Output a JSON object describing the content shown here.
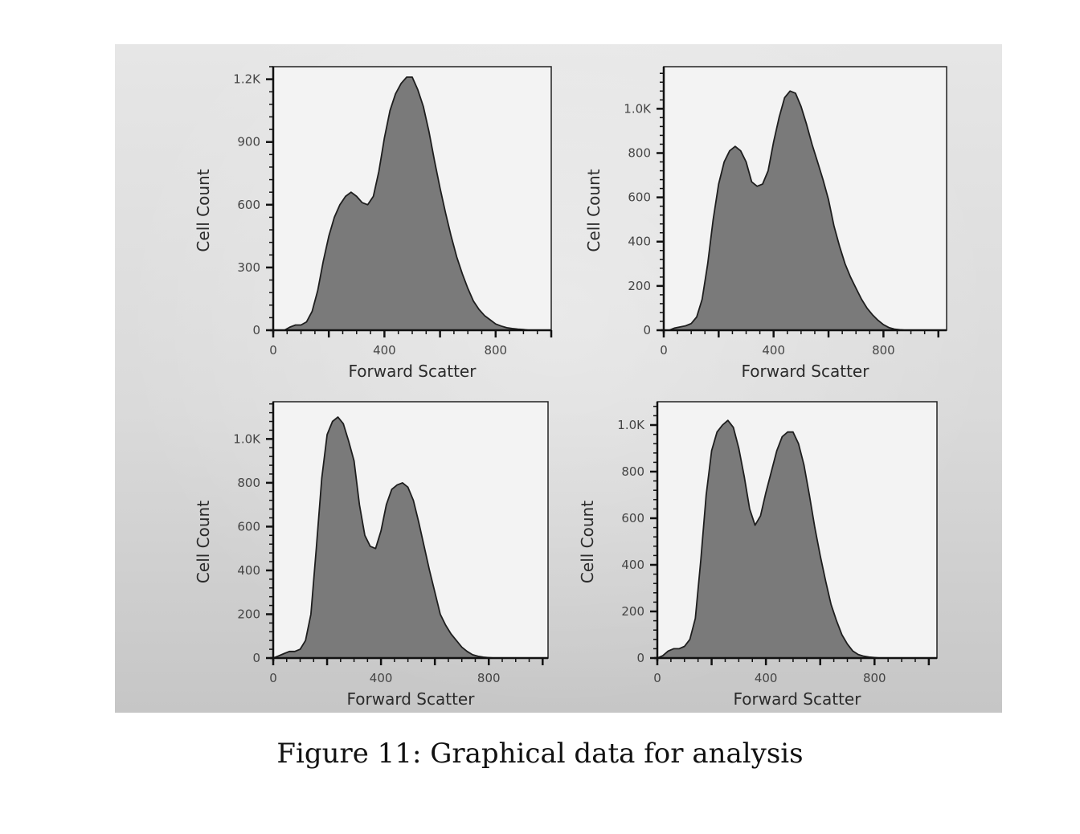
{
  "caption": "Figure 11: Graphical data for analysis",
  "chart_data": [
    {
      "type": "area",
      "xlabel": "Forward Scatter",
      "ylabel": "Cell Count",
      "xlim": [
        0,
        1000
      ],
      "ylim": [
        0,
        1260
      ],
      "xticks": [
        {
          "value": 0,
          "label": "0"
        },
        {
          "value": 400,
          "label": "400"
        },
        {
          "value": 800,
          "label": "800"
        }
      ],
      "yticks": [
        {
          "value": 0,
          "label": "0"
        },
        {
          "value": 300,
          "label": "300"
        },
        {
          "value": 600,
          "label": "600"
        },
        {
          "value": 900,
          "label": "900"
        },
        {
          "value": 1200,
          "label": "1.2K"
        }
      ],
      "x": [
        0,
        20,
        40,
        60,
        80,
        100,
        120,
        140,
        160,
        180,
        200,
        220,
        240,
        260,
        280,
        300,
        320,
        340,
        360,
        380,
        400,
        420,
        440,
        460,
        480,
        500,
        520,
        540,
        560,
        580,
        600,
        620,
        640,
        660,
        680,
        700,
        720,
        740,
        760,
        780,
        800,
        820,
        840,
        860,
        880,
        900,
        920,
        940,
        960,
        980,
        1000
      ],
      "values": [
        0,
        0,
        0,
        15,
        25,
        25,
        40,
        90,
        190,
        330,
        450,
        540,
        600,
        640,
        660,
        640,
        610,
        600,
        640,
        760,
        920,
        1050,
        1130,
        1180,
        1210,
        1210,
        1150,
        1070,
        950,
        810,
        680,
        560,
        450,
        350,
        270,
        200,
        140,
        100,
        70,
        50,
        30,
        20,
        12,
        8,
        5,
        3,
        0,
        0,
        0,
        0,
        0
      ],
      "color": "#7a7a7a"
    },
    {
      "type": "area",
      "xlabel": "Forward Scatter",
      "ylabel": "Cell Count",
      "xlim": [
        0,
        1030
      ],
      "ylim": [
        0,
        1190
      ],
      "xticks": [
        {
          "value": 0,
          "label": "0"
        },
        {
          "value": 400,
          "label": "400"
        },
        {
          "value": 800,
          "label": "800"
        }
      ],
      "yticks": [
        {
          "value": 0,
          "label": "0"
        },
        {
          "value": 200,
          "label": "200"
        },
        {
          "value": 400,
          "label": "400"
        },
        {
          "value": 600,
          "label": "600"
        },
        {
          "value": 800,
          "label": "800"
        },
        {
          "value": 1000,
          "label": "1.0K"
        }
      ],
      "x": [
        0,
        20,
        40,
        60,
        80,
        100,
        120,
        140,
        160,
        180,
        200,
        220,
        240,
        260,
        280,
        300,
        320,
        340,
        360,
        380,
        400,
        420,
        440,
        460,
        480,
        500,
        520,
        540,
        560,
        580,
        600,
        620,
        640,
        660,
        680,
        700,
        720,
        740,
        760,
        780,
        800,
        820,
        840,
        860,
        880,
        900,
        920,
        940,
        960,
        980,
        1000
      ],
      "values": [
        0,
        0,
        10,
        15,
        20,
        30,
        60,
        140,
        300,
        500,
        660,
        760,
        810,
        830,
        810,
        760,
        670,
        650,
        660,
        720,
        850,
        960,
        1050,
        1080,
        1070,
        1010,
        930,
        840,
        760,
        680,
        590,
        470,
        380,
        300,
        240,
        190,
        140,
        100,
        70,
        45,
        25,
        12,
        5,
        2,
        0,
        0,
        0,
        0,
        0,
        0,
        0
      ],
      "color": "#7a7a7a"
    },
    {
      "type": "area",
      "xlabel": "Forward Scatter",
      "ylabel": "Cell Count",
      "xlim": [
        0,
        1020
      ],
      "ylim": [
        0,
        1170
      ],
      "xticks": [
        {
          "value": 0,
          "label": "0"
        },
        {
          "value": 400,
          "label": "400"
        },
        {
          "value": 800,
          "label": "800"
        }
      ],
      "yticks": [
        {
          "value": 0,
          "label": "0"
        },
        {
          "value": 200,
          "label": "200"
        },
        {
          "value": 400,
          "label": "400"
        },
        {
          "value": 600,
          "label": "600"
        },
        {
          "value": 800,
          "label": "800"
        },
        {
          "value": 1000,
          "label": "1.0K"
        }
      ],
      "x": [
        0,
        20,
        40,
        60,
        80,
        100,
        120,
        140,
        160,
        180,
        200,
        220,
        240,
        260,
        280,
        300,
        320,
        340,
        360,
        380,
        400,
        420,
        440,
        460,
        480,
        500,
        520,
        540,
        560,
        580,
        600,
        620,
        640,
        660,
        680,
        700,
        720,
        740,
        760,
        780,
        800,
        820,
        840,
        860,
        880,
        900,
        920,
        940,
        960,
        980,
        1000
      ],
      "values": [
        0,
        10,
        20,
        30,
        30,
        40,
        80,
        200,
        500,
        820,
        1020,
        1080,
        1100,
        1070,
        990,
        900,
        700,
        560,
        510,
        500,
        580,
        700,
        770,
        790,
        800,
        780,
        720,
        620,
        510,
        400,
        300,
        200,
        150,
        110,
        80,
        50,
        30,
        15,
        8,
        4,
        2,
        0,
        0,
        0,
        0,
        0,
        0,
        0,
        0,
        0,
        0
      ],
      "color": "#7a7a7a"
    },
    {
      "type": "area",
      "xlabel": "Forward Scatter",
      "ylabel": "Cell Count",
      "xlim": [
        0,
        1030
      ],
      "ylim": [
        0,
        1100
      ],
      "xticks": [
        {
          "value": 0,
          "label": "0"
        },
        {
          "value": 400,
          "label": "400"
        },
        {
          "value": 800,
          "label": "800"
        }
      ],
      "yticks": [
        {
          "value": 0,
          "label": "0"
        },
        {
          "value": 200,
          "label": "200"
        },
        {
          "value": 400,
          "label": "400"
        },
        {
          "value": 600,
          "label": "600"
        },
        {
          "value": 800,
          "label": "800"
        },
        {
          "value": 1000,
          "label": "1.0K"
        }
      ],
      "x": [
        0,
        20,
        40,
        60,
        80,
        100,
        120,
        140,
        160,
        180,
        200,
        220,
        240,
        260,
        280,
        300,
        320,
        340,
        360,
        380,
        400,
        420,
        440,
        460,
        480,
        500,
        520,
        540,
        560,
        580,
        600,
        620,
        640,
        660,
        680,
        700,
        720,
        740,
        760,
        780,
        800,
        820,
        840,
        860,
        880,
        900,
        920,
        940,
        960,
        980,
        1000
      ],
      "values": [
        0,
        10,
        30,
        40,
        40,
        50,
        80,
        170,
        420,
        700,
        890,
        970,
        1000,
        1020,
        990,
        900,
        780,
        640,
        570,
        610,
        710,
        800,
        890,
        950,
        970,
        970,
        920,
        830,
        700,
        560,
        440,
        330,
        230,
        160,
        100,
        60,
        30,
        15,
        8,
        4,
        2,
        0,
        0,
        0,
        0,
        0,
        0,
        0,
        0,
        0,
        0
      ],
      "color": "#7a7a7a"
    }
  ]
}
